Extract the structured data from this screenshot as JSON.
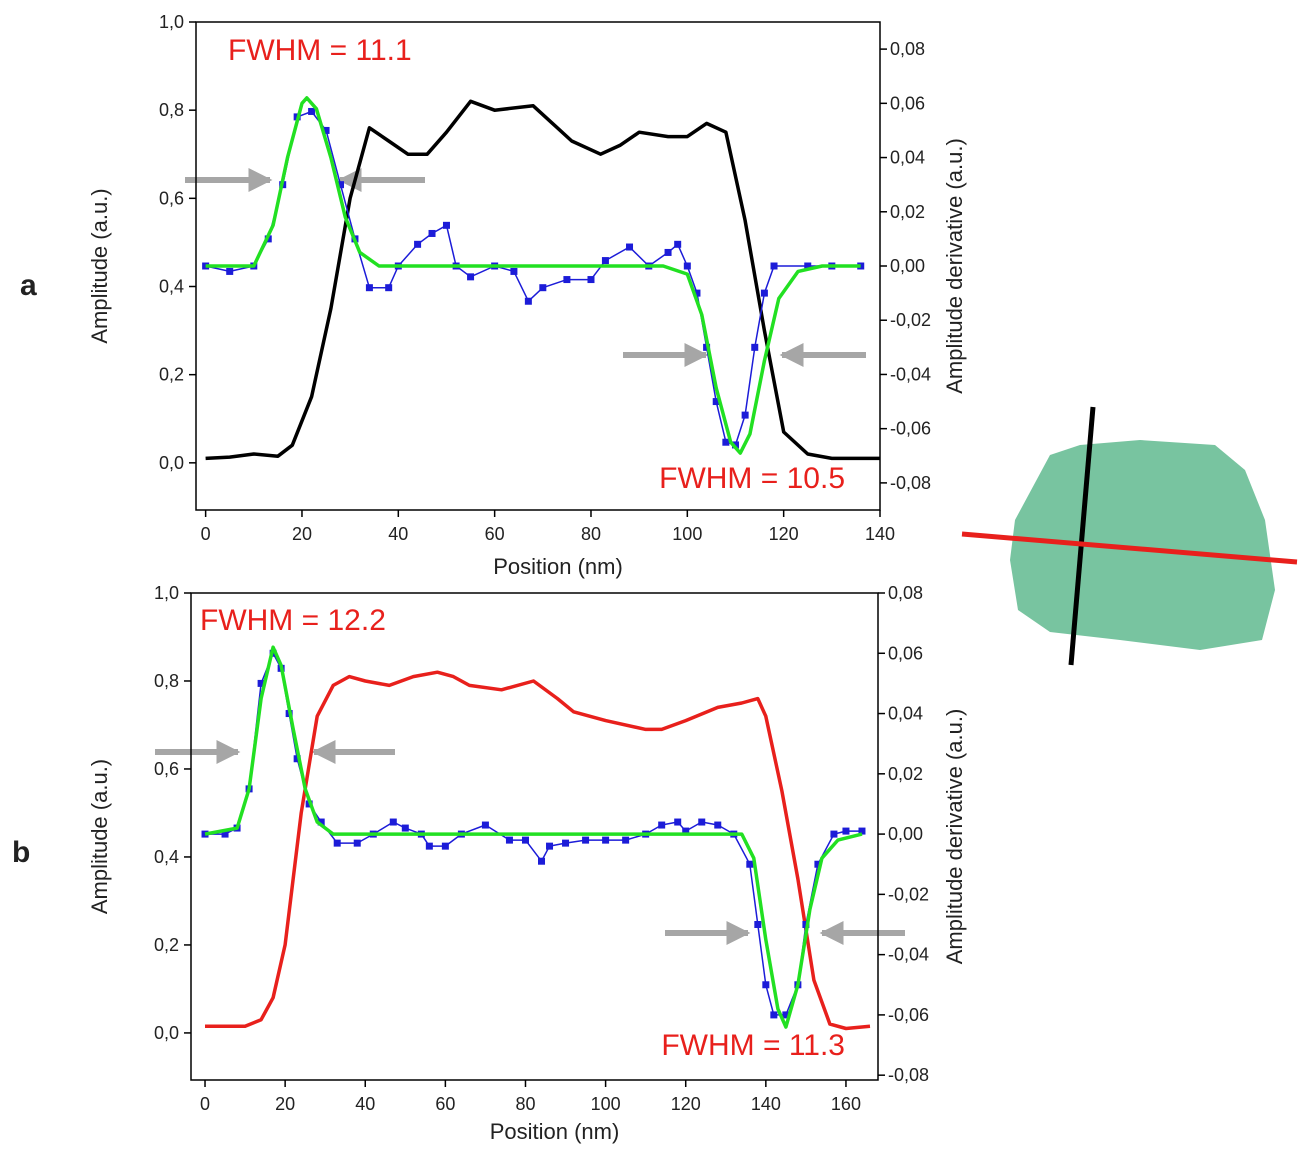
{
  "chart_data": [
    {
      "type": "line",
      "label": "a",
      "xlabel": "Position (nm)",
      "ylabel": "Amplitude (a.u.)",
      "y2label": "Amplitude derivative (a.u.)",
      "xlim": [
        -2,
        140
      ],
      "xticks": [
        0,
        20,
        40,
        60,
        80,
        100,
        120,
        140
      ],
      "ylim": [
        -0.107,
        1.0
      ],
      "yticks": [
        {
          "value": 0,
          "label": "0,0"
        },
        {
          "value": 0.2,
          "label": "0,2"
        },
        {
          "value": 0.4,
          "label": "0,4"
        },
        {
          "value": 0.6,
          "label": "0,6"
        },
        {
          "value": 0.8,
          "label": "0,8"
        },
        {
          "value": 1.0,
          "label": "1,0"
        }
      ],
      "y2lim": [
        -0.09,
        0.09
      ],
      "y2ticks": [
        {
          "value": -0.08,
          "label": "-0,08"
        },
        {
          "value": -0.06,
          "label": "-0,06"
        },
        {
          "value": -0.04,
          "label": "-0,04"
        },
        {
          "value": -0.02,
          "label": "-0,02"
        },
        {
          "value": 0,
          "label": "0,00"
        },
        {
          "value": 0.02,
          "label": "0,02"
        },
        {
          "value": 0.04,
          "label": "0,04"
        },
        {
          "value": 0.06,
          "label": "0,06"
        },
        {
          "value": 0.08,
          "label": "0,08"
        }
      ],
      "annotations": [
        "FWHM = 11.1",
        "FWHM = 10.5"
      ],
      "series": [
        {
          "color": "#000000",
          "marker": "none",
          "x": [
            0,
            5,
            10,
            15,
            18,
            22,
            26,
            30,
            34,
            38,
            42,
            46,
            50,
            55,
            60,
            68,
            72,
            76,
            82,
            86,
            90,
            96,
            100,
            104,
            108,
            112,
            116,
            120,
            125,
            130,
            140
          ],
          "values": [
            0.01,
            0.013,
            0.02,
            0.015,
            0.04,
            0.15,
            0.35,
            0.6,
            0.76,
            0.73,
            0.7,
            0.7,
            0.75,
            0.82,
            0.8,
            0.81,
            0.77,
            0.73,
            0.7,
            0.72,
            0.75,
            0.74,
            0.74,
            0.77,
            0.75,
            0.55,
            0.3,
            0.07,
            0.02,
            0.01,
            0.01
          ]
        },
        {
          "color": "#1c1cd8",
          "marker": "square",
          "axis": "y2",
          "x": [
            0,
            5,
            10,
            13,
            16,
            19,
            22,
            25,
            28,
            31,
            34,
            38,
            40,
            44,
            47,
            50,
            52,
            55,
            60,
            64,
            67,
            70,
            75,
            80,
            83,
            88,
            92,
            96,
            98,
            100,
            102,
            104,
            106,
            108,
            110,
            112,
            114,
            116,
            118,
            125,
            130,
            136
          ],
          "values": [
            0,
            -0.002,
            0,
            0.01,
            0.03,
            0.055,
            0.057,
            0.05,
            0.03,
            0.01,
            -0.008,
            -0.008,
            0,
            0.008,
            0.012,
            0.015,
            0,
            -0.004,
            0,
            -0.002,
            -0.013,
            -0.008,
            -0.005,
            -0.005,
            0.002,
            0.007,
            0,
            0.005,
            0.008,
            0,
            -0.01,
            -0.03,
            -0.05,
            -0.065,
            -0.066,
            -0.055,
            -0.03,
            -0.01,
            0,
            0,
            0,
            0
          ]
        },
        {
          "color": "#22e022",
          "marker": "none",
          "axis": "y2",
          "x": [
            0,
            10,
            14,
            17,
            20,
            21,
            23,
            26,
            29,
            32,
            36,
            95,
            100,
            103,
            106,
            109,
            111,
            113,
            116,
            119,
            123,
            128,
            136
          ],
          "values": [
            0,
            0,
            0.015,
            0.04,
            0.06,
            0.062,
            0.058,
            0.04,
            0.018,
            0.005,
            0,
            0,
            -0.003,
            -0.018,
            -0.045,
            -0.065,
            -0.069,
            -0.062,
            -0.035,
            -0.012,
            -0.002,
            0,
            0
          ]
        }
      ]
    },
    {
      "type": "line",
      "label": "b",
      "xlabel": "Position (nm)",
      "ylabel": "Amplitude (a.u.)",
      "y2label": "Amplitude derivative (a.u.)",
      "xlim": [
        -3.5,
        168
      ],
      "xticks": [
        0,
        20,
        40,
        60,
        80,
        100,
        120,
        140,
        160
      ],
      "ylim": [
        -0.107,
        1.0
      ],
      "yticks": [
        {
          "value": 0,
          "label": "0,0"
        },
        {
          "value": 0.2,
          "label": "0,2"
        },
        {
          "value": 0.4,
          "label": "0,4"
        },
        {
          "value": 0.6,
          "label": "0,6"
        },
        {
          "value": 0.8,
          "label": "0,8"
        },
        {
          "value": 1.0,
          "label": "1,0"
        }
      ],
      "y2lim": [
        -0.0816,
        0.08
      ],
      "y2ticks": [
        {
          "value": -0.08,
          "label": "-0,08"
        },
        {
          "value": -0.06,
          "label": "-0,06"
        },
        {
          "value": -0.04,
          "label": "-0,04"
        },
        {
          "value": -0.02,
          "label": "-0,02"
        },
        {
          "value": 0,
          "label": "0,00"
        },
        {
          "value": 0.02,
          "label": "0,02"
        },
        {
          "value": 0.04,
          "label": "0,04"
        },
        {
          "value": 0.06,
          "label": "0,06"
        },
        {
          "value": 0.08,
          "label": "0,08"
        }
      ],
      "annotations": [
        "FWHM = 12.2",
        "FWHM = 11.3"
      ],
      "series": [
        {
          "color": "#e8201c",
          "marker": "none",
          "x": [
            0,
            10,
            14,
            17,
            20,
            24,
            28,
            32,
            36,
            40,
            46,
            52,
            58,
            62,
            66,
            74,
            82,
            88,
            92,
            100,
            110,
            114,
            120,
            128,
            134,
            138,
            140,
            144,
            148,
            152,
            156,
            160,
            166
          ],
          "values": [
            0.015,
            0.015,
            0.03,
            0.08,
            0.2,
            0.5,
            0.72,
            0.79,
            0.81,
            0.8,
            0.79,
            0.81,
            0.82,
            0.81,
            0.79,
            0.78,
            0.8,
            0.76,
            0.73,
            0.71,
            0.69,
            0.69,
            0.71,
            0.74,
            0.75,
            0.76,
            0.72,
            0.55,
            0.35,
            0.12,
            0.02,
            0.01,
            0.015
          ]
        },
        {
          "color": "#1c1cd8",
          "marker": "square",
          "axis": "y2",
          "x": [
            0,
            5,
            8,
            11,
            14,
            17,
            19,
            21,
            23,
            26,
            29,
            33,
            38,
            42,
            47,
            50,
            54,
            56,
            60,
            64,
            70,
            76,
            80,
            84,
            86,
            90,
            95,
            100,
            105,
            110,
            114,
            118,
            120,
            124,
            128,
            132,
            136,
            138,
            140,
            142,
            145,
            148,
            150,
            153,
            157,
            160,
            164
          ],
          "values": [
            0,
            0,
            0.002,
            0.015,
            0.05,
            0.06,
            0.055,
            0.04,
            0.025,
            0.01,
            0.004,
            -0.003,
            -0.003,
            0,
            0.004,
            0.002,
            0,
            -0.004,
            -0.004,
            0,
            0.003,
            -0.002,
            -0.002,
            -0.009,
            -0.004,
            -0.003,
            -0.002,
            -0.002,
            -0.002,
            0,
            0.003,
            0.004,
            0.001,
            0.004,
            0.003,
            0,
            -0.01,
            -0.03,
            -0.05,
            -0.06,
            -0.06,
            -0.05,
            -0.03,
            -0.01,
            0,
            0.001,
            0.001
          ]
        },
        {
          "color": "#22e022",
          "marker": "none",
          "axis": "y2",
          "x": [
            0,
            8,
            11,
            14,
            17,
            19,
            22,
            25,
            28,
            32,
            134,
            137,
            140,
            143,
            145,
            148,
            151,
            154,
            158,
            164
          ],
          "values": [
            0,
            0.002,
            0.015,
            0.045,
            0.062,
            0.056,
            0.035,
            0.015,
            0.004,
            0,
            0,
            -0.008,
            -0.035,
            -0.058,
            -0.064,
            -0.05,
            -0.025,
            -0.008,
            -0.002,
            0
          ]
        }
      ]
    }
  ]
}
